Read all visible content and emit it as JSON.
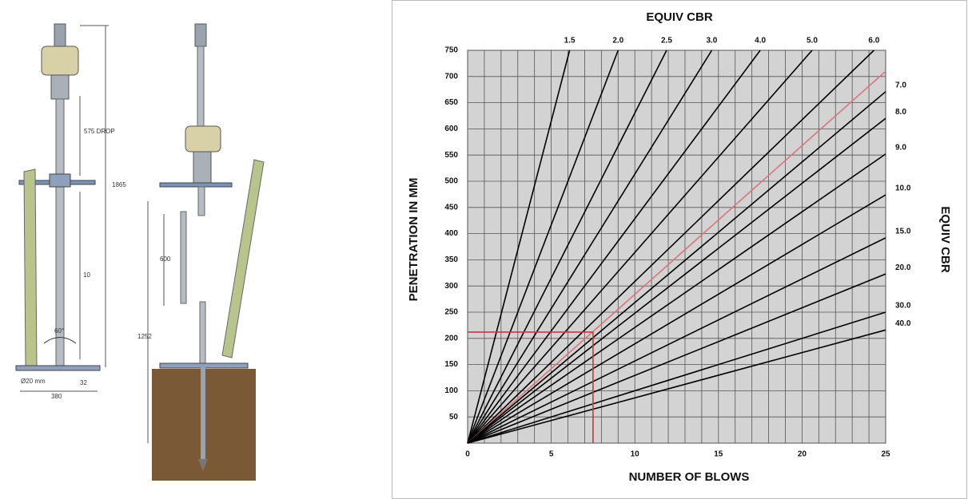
{
  "diagram": {
    "labels": [
      "575 DROP",
      "1865",
      "10",
      "60°",
      "Ø20 mm",
      "32",
      "380",
      "600",
      "1252"
    ]
  },
  "chart_data": {
    "type": "line",
    "top_axis_label": "EQUIV CBR",
    "right_axis_label": "EQUIV CBR",
    "xlabel": "NUMBER OF BLOWS",
    "ylabel": "PENETRATION IN MM",
    "xlim": [
      0,
      25
    ],
    "ylim": [
      0,
      750
    ],
    "xticks": [
      0,
      5,
      10,
      15,
      20,
      25
    ],
    "yticks": [
      50,
      100,
      150,
      200,
      250,
      300,
      350,
      400,
      450,
      500,
      550,
      600,
      650,
      700,
      750
    ],
    "x_minor_ticks": [
      1,
      2,
      3,
      4,
      6,
      7,
      8,
      9,
      11,
      12,
      13,
      14,
      16,
      17,
      18,
      19,
      21,
      22,
      23,
      24
    ],
    "grid": true,
    "background": "#d3d3d3",
    "series": [
      {
        "name": "1.5",
        "color": "#000000",
        "x": [
          0,
          6.1
        ],
        "values": [
          0,
          750
        ]
      },
      {
        "name": "2.0",
        "color": "#000000",
        "x": [
          0,
          9.0
        ],
        "values": [
          0,
          750
        ]
      },
      {
        "name": "2.5",
        "color": "#000000",
        "x": [
          0,
          11.9
        ],
        "values": [
          0,
          750
        ]
      },
      {
        "name": "3.0",
        "color": "#000000",
        "x": [
          0,
          14.6
        ],
        "values": [
          0,
          750
        ]
      },
      {
        "name": "4.0",
        "color": "#000000",
        "x": [
          0,
          17.5
        ],
        "values": [
          0,
          750
        ]
      },
      {
        "name": "5.0",
        "color": "#000000",
        "x": [
          0,
          20.6
        ],
        "values": [
          0,
          750
        ]
      },
      {
        "name": "6.0",
        "color": "#000000",
        "x": [
          0,
          24.3
        ],
        "values": [
          0,
          750
        ]
      },
      {
        "color": "#d9757a",
        "x": [
          0,
          25
        ],
        "values": [
          0,
          710
        ]
      },
      {
        "name": "7.0",
        "color": "#000000",
        "x": [
          0,
          25
        ],
        "values": [
          0,
          671
        ]
      },
      {
        "name": "8.0",
        "color": "#000000",
        "x": [
          0,
          25
        ],
        "values": [
          0,
          620
        ]
      },
      {
        "name": "9.0",
        "color": "#000000",
        "x": [
          0,
          25
        ],
        "values": [
          0,
          552
        ]
      },
      {
        "name": "10.0",
        "color": "#000000",
        "x": [
          0,
          25
        ],
        "values": [
          0,
          474
        ]
      },
      {
        "name": "15.0",
        "color": "#000000",
        "x": [
          0,
          25
        ],
        "values": [
          0,
          392
        ]
      },
      {
        "name": "20.0",
        "color": "#000000",
        "x": [
          0,
          25
        ],
        "values": [
          0,
          323
        ]
      },
      {
        "name": "30.0",
        "color": "#000000",
        "x": [
          0,
          25
        ],
        "values": [
          0,
          250
        ]
      },
      {
        "name": "40.0",
        "color": "#000000",
        "x": [
          0,
          25
        ],
        "values": [
          0,
          216
        ]
      }
    ],
    "example": {
      "x": 7.5,
      "y": 212,
      "color": "#c8383f"
    }
  }
}
